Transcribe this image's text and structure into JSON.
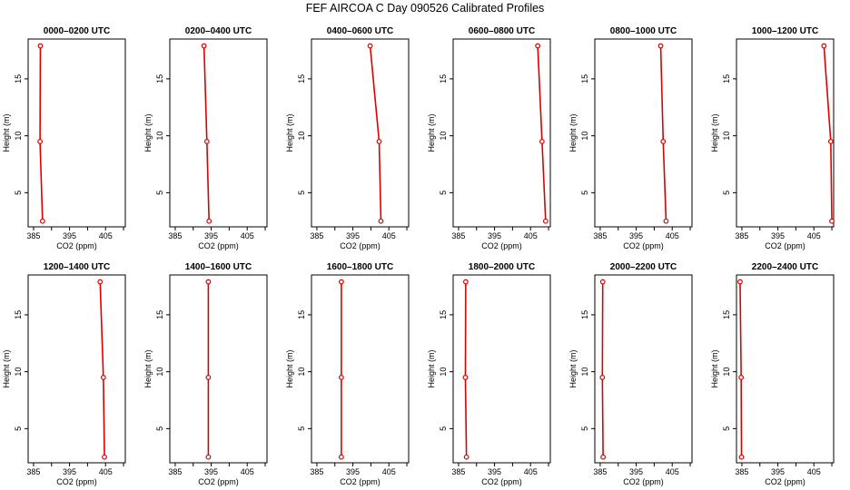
{
  "title": "FEF AIRCOA C  Day 090526  Calibrated Profiles",
  "colors": {
    "profile": "#dd0000",
    "axis": "#000000"
  },
  "chart_data": [
    {
      "type": "line",
      "title": "0000–0200 UTC",
      "xlabel": "CO2 (ppm)",
      "ylabel": "Height (m)",
      "xlim": [
        383.5,
        410.5
      ],
      "ylim": [
        2,
        18.5
      ],
      "x_ticks": [
        385,
        395,
        405
      ],
      "y_ticks": [
        5,
        10,
        15
      ],
      "points": [
        {
          "x": 387.5,
          "y": 2.5
        },
        {
          "x": 386.8,
          "y": 9.5
        },
        {
          "x": 386.9,
          "y": 17.9
        }
      ]
    },
    {
      "type": "line",
      "title": "0200–0400 UTC",
      "xlabel": "CO2 (ppm)",
      "ylabel": "Height (m)",
      "xlim": [
        383.5,
        410.5
      ],
      "ylim": [
        2,
        18.5
      ],
      "x_ticks": [
        385,
        395,
        405
      ],
      "y_ticks": [
        5,
        10,
        15
      ],
      "points": [
        {
          "x": 394.4,
          "y": 2.5
        },
        {
          "x": 393.8,
          "y": 9.5
        },
        {
          "x": 393.0,
          "y": 17.9
        }
      ]
    },
    {
      "type": "line",
      "title": "0400–0600 UTC",
      "xlabel": "CO2 (ppm)",
      "ylabel": "Height (m)",
      "xlim": [
        383.5,
        410.5
      ],
      "ylim": [
        2,
        18.5
      ],
      "x_ticks": [
        385,
        395,
        405
      ],
      "y_ticks": [
        5,
        10,
        15
      ],
      "points": [
        {
          "x": 402.8,
          "y": 2.5
        },
        {
          "x": 402.3,
          "y": 9.5
        },
        {
          "x": 399.8,
          "y": 17.9
        }
      ]
    },
    {
      "type": "line",
      "title": "0600–0800 UTC",
      "xlabel": "CO2 (ppm)",
      "ylabel": "Height (m)",
      "xlim": [
        383.5,
        410.5
      ],
      "ylim": [
        2,
        18.5
      ],
      "x_ticks": [
        385,
        395,
        405
      ],
      "y_ticks": [
        5,
        10,
        15
      ],
      "points": [
        {
          "x": 409.2,
          "y": 2.5
        },
        {
          "x": 408.2,
          "y": 9.5
        },
        {
          "x": 407.0,
          "y": 17.9
        }
      ]
    },
    {
      "type": "line",
      "title": "0800–1000 UTC",
      "xlabel": "CO2 (ppm)",
      "ylabel": "Height (m)",
      "xlim": [
        383.5,
        410.5
      ],
      "ylim": [
        2,
        18.5
      ],
      "x_ticks": [
        385,
        395,
        405
      ],
      "y_ticks": [
        5,
        10,
        15
      ],
      "points": [
        {
          "x": 403.3,
          "y": 2.5
        },
        {
          "x": 402.5,
          "y": 9.5
        },
        {
          "x": 401.8,
          "y": 17.9
        }
      ]
    },
    {
      "type": "line",
      "title": "1000–1200 UTC",
      "xlabel": "CO2 (ppm)",
      "ylabel": "Height (m)",
      "xlim": [
        383.5,
        410.5
      ],
      "ylim": [
        2,
        18.5
      ],
      "x_ticks": [
        385,
        395,
        405
      ],
      "y_ticks": [
        5,
        10,
        15
      ],
      "points": [
        {
          "x": 410.0,
          "y": 2.5
        },
        {
          "x": 409.7,
          "y": 9.5
        },
        {
          "x": 407.8,
          "y": 17.9
        }
      ]
    },
    {
      "type": "line",
      "title": "1200–1400 UTC",
      "xlabel": "CO2 (ppm)",
      "ylabel": "Height (m)",
      "xlim": [
        383.5,
        410.5
      ],
      "ylim": [
        2,
        18.5
      ],
      "x_ticks": [
        385,
        395,
        405
      ],
      "y_ticks": [
        5,
        10,
        15
      ],
      "points": [
        {
          "x": 404.7,
          "y": 2.5
        },
        {
          "x": 404.4,
          "y": 9.5
        },
        {
          "x": 403.5,
          "y": 17.9
        }
      ]
    },
    {
      "type": "line",
      "title": "1400–1600 UTC",
      "xlabel": "CO2 (ppm)",
      "ylabel": "Height (m)",
      "xlim": [
        383.5,
        410.5
      ],
      "ylim": [
        2,
        18.5
      ],
      "x_ticks": [
        385,
        395,
        405
      ],
      "y_ticks": [
        5,
        10,
        15
      ],
      "points": [
        {
          "x": 394.2,
          "y": 2.5
        },
        {
          "x": 394.2,
          "y": 9.5
        },
        {
          "x": 394.2,
          "y": 17.9
        }
      ]
    },
    {
      "type": "line",
      "title": "1600–1800 UTC",
      "xlabel": "CO2 (ppm)",
      "ylabel": "Height (m)",
      "xlim": [
        383.5,
        410.5
      ],
      "ylim": [
        2,
        18.5
      ],
      "x_ticks": [
        385,
        395,
        405
      ],
      "y_ticks": [
        5,
        10,
        15
      ],
      "points": [
        {
          "x": 391.8,
          "y": 2.5
        },
        {
          "x": 391.8,
          "y": 9.5
        },
        {
          "x": 391.8,
          "y": 17.9
        }
      ]
    },
    {
      "type": "line",
      "title": "1800–2000 UTC",
      "xlabel": "CO2 (ppm)",
      "ylabel": "Height (m)",
      "xlim": [
        383.5,
        410.5
      ],
      "ylim": [
        2,
        18.5
      ],
      "x_ticks": [
        385,
        395,
        405
      ],
      "y_ticks": [
        5,
        10,
        15
      ],
      "points": [
        {
          "x": 387.2,
          "y": 2.5
        },
        {
          "x": 386.9,
          "y": 9.5
        },
        {
          "x": 387.0,
          "y": 17.9
        }
      ]
    },
    {
      "type": "line",
      "title": "2000–2200 UTC",
      "xlabel": "CO2 (ppm)",
      "ylabel": "Height (m)",
      "xlim": [
        383.5,
        410.5
      ],
      "ylim": [
        2,
        18.5
      ],
      "x_ticks": [
        385,
        395,
        405
      ],
      "y_ticks": [
        5,
        10,
        15
      ],
      "points": [
        {
          "x": 385.8,
          "y": 2.5
        },
        {
          "x": 385.6,
          "y": 9.5
        },
        {
          "x": 385.7,
          "y": 17.9
        }
      ]
    },
    {
      "type": "line",
      "title": "2200–2400 UTC",
      "xlabel": "CO2 (ppm)",
      "ylabel": "Height (m)",
      "xlim": [
        383.5,
        410.5
      ],
      "ylim": [
        2,
        18.5
      ],
      "x_ticks": [
        385,
        395,
        405
      ],
      "y_ticks": [
        5,
        10,
        15
      ],
      "points": [
        {
          "x": 384.9,
          "y": 2.5
        },
        {
          "x": 384.8,
          "y": 9.5
        },
        {
          "x": 384.5,
          "y": 17.9
        }
      ]
    }
  ]
}
